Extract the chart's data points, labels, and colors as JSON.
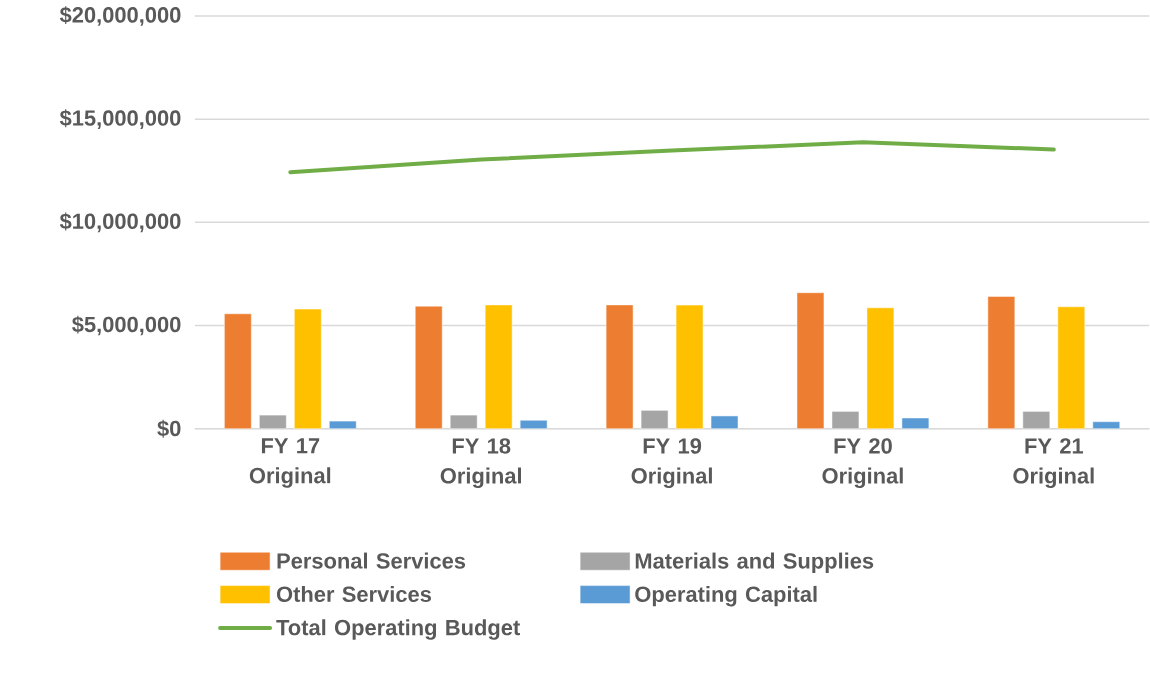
{
  "chart_data": {
    "type": "bar",
    "categories": [
      "FY 17 Original",
      "FY 18 Original",
      "FY 19 Original",
      "FY 20 Original",
      "FY 21 Original"
    ],
    "series": [
      {
        "name": "Personal Services",
        "color": "#ed7d31",
        "values": [
          5570000,
          5940000,
          6000000,
          6590000,
          6410000
        ]
      },
      {
        "name": "Materials and Supplies",
        "color": "#a5a5a5",
        "values": [
          660000,
          660000,
          890000,
          840000,
          840000
        ]
      },
      {
        "name": "Other Services",
        "color": "#ffc000",
        "values": [
          5800000,
          6000000,
          5990000,
          5860000,
          5910000
        ]
      },
      {
        "name": "Operating Capital",
        "color": "#5b9bd5",
        "values": [
          370000,
          410000,
          620000,
          520000,
          340000
        ]
      },
      {
        "name": "Total Operating Budget",
        "type": "line",
        "color": "#70ad47",
        "values": [
          12430000,
          13040000,
          13480000,
          13880000,
          13530000
        ]
      }
    ],
    "ylim": [
      0,
      20000000
    ],
    "yticks": [
      {
        "value": 0,
        "label": "$0"
      },
      {
        "value": 5000000,
        "label": "$5,000,000"
      },
      {
        "value": 10000000,
        "label": "$10,000,000"
      },
      {
        "value": 15000000,
        "label": "$15,000,000"
      },
      {
        "value": 20000000,
        "label": "$20,000,000"
      }
    ],
    "grid": "y",
    "legend": "bottom",
    "marker": "none",
    "line_style": "solid"
  }
}
